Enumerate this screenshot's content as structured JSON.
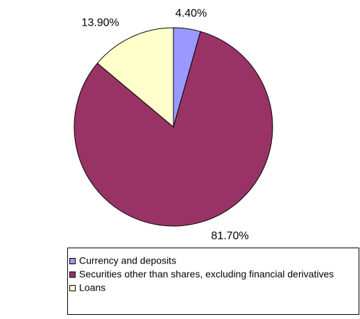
{
  "chart_data": {
    "type": "pie",
    "categories": [
      "Currency and deposits",
      "Securities other than shares, excluding financial derivatives",
      "Loans"
    ],
    "values": [
      4.4,
      81.7,
      13.9
    ],
    "value_labels": [
      "4.40%",
      "81.70%",
      "13.90%"
    ],
    "colors": [
      "#9999ff",
      "#993366",
      "#ffffcc"
    ]
  }
}
